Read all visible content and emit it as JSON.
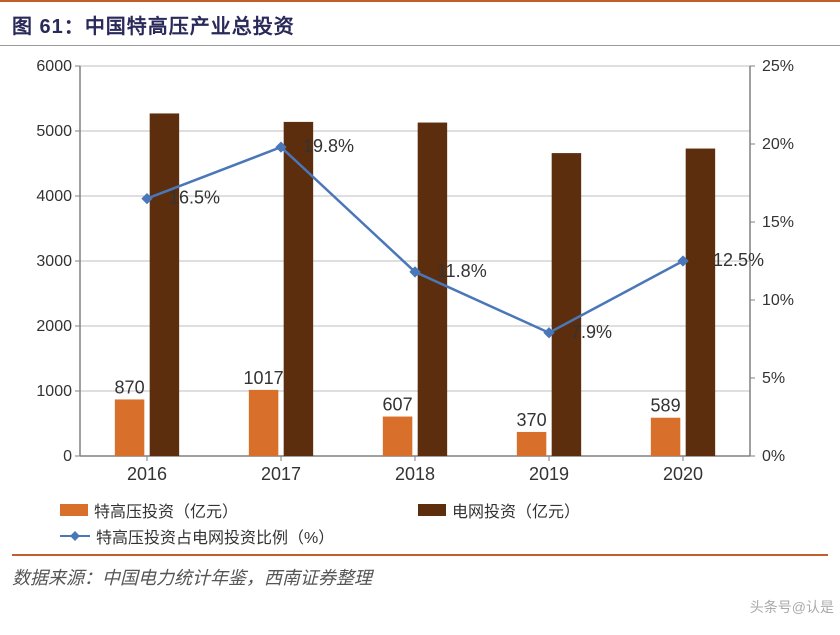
{
  "title_prefix": "图 61：",
  "title_main": "中国特高压产业总投资",
  "source_label": "数据来源：中国电力统计年鉴，西南证券整理",
  "watermark": "头条号@认是",
  "chart": {
    "type": "bar+line",
    "categories": [
      "2016",
      "2017",
      "2018",
      "2019",
      "2020"
    ],
    "series_bar1": {
      "name": "特高压投资（亿元）",
      "values": [
        870,
        1017,
        607,
        370,
        589
      ],
      "color": "#d86f2a"
    },
    "series_bar2": {
      "name": "电网投资（亿元）",
      "values": [
        5270,
        5140,
        5130,
        4660,
        4730
      ],
      "color": "#5c2e0e"
    },
    "series_line": {
      "name": "特高压投资占电网投资比例（%）",
      "values": [
        16.5,
        19.8,
        11.8,
        7.9,
        12.5
      ],
      "labels": [
        "16.5%",
        "19.8%",
        "11.8%",
        "7.9%",
        "12.5%"
      ],
      "color": "#4a77b8"
    },
    "y_left": {
      "min": 0,
      "max": 6000,
      "step": 1000
    },
    "y_right": {
      "min": 0,
      "max": 25,
      "step": 5,
      "suffix": "%"
    },
    "axis_fontsize": 16,
    "label_fontsize": 18,
    "label_color": "#333333",
    "grid_color": "#bfbfbf",
    "axis_color": "#808080",
    "background_color": "#ffffff",
    "bar_width": 0.22,
    "bar_gap": 0.04
  }
}
